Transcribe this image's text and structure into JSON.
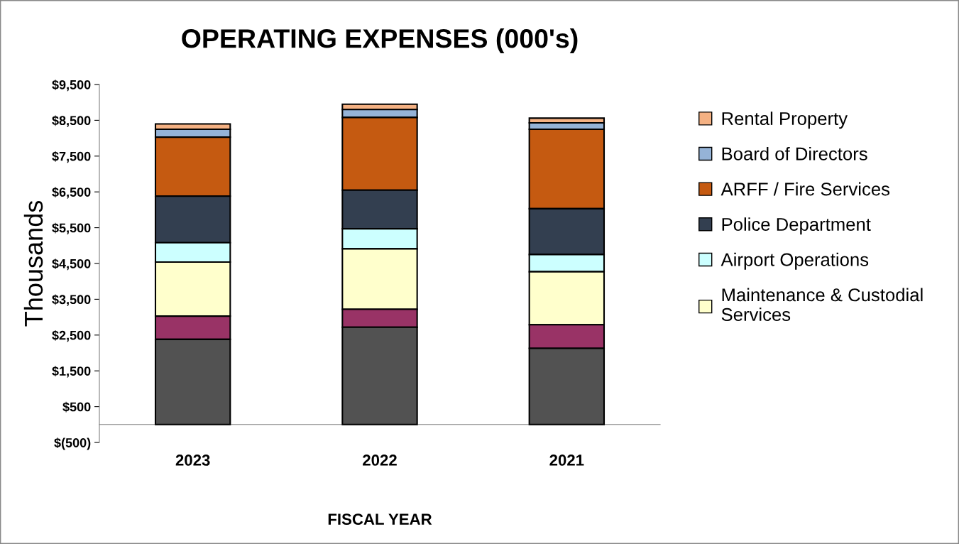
{
  "chart_data": {
    "type": "bar",
    "stacked": true,
    "title": "OPERATING EXPENSES (000's)",
    "xlabel": "FISCAL YEAR",
    "ylabel": "Thousands",
    "categories": [
      "2023",
      "2022",
      "2021"
    ],
    "series": [
      {
        "color": "#525252",
        "values": [
          2380,
          2720,
          2130
        ]
      },
      {
        "color": "#993366",
        "values": [
          650,
          500,
          660
        ]
      },
      {
        "name": "Maintenance & Custodial\nServices",
        "color": "#ffffcc",
        "values": [
          1510,
          1690,
          1480
        ]
      },
      {
        "name": "Airport Operations",
        "color": "#ccffff",
        "values": [
          540,
          560,
          480
        ]
      },
      {
        "name": "Police Department",
        "color": "#333f50",
        "values": [
          1300,
          1080,
          1280
        ]
      },
      {
        "name": "ARFF / Fire Services",
        "color": "#c55a11",
        "values": [
          1650,
          2030,
          2220
        ]
      },
      {
        "name": "Board of Directors",
        "color": "#95b3d7",
        "values": [
          220,
          220,
          180
        ]
      },
      {
        "name": "Rental Property",
        "color": "#f4b183",
        "values": [
          150,
          150,
          130
        ]
      }
    ],
    "ylim": [
      -500,
      9500
    ],
    "yticks": [
      {
        "value": -500,
        "label": "$(500)"
      },
      {
        "value": 500,
        "label": "$500"
      },
      {
        "value": 1500,
        "label": "$1,500"
      },
      {
        "value": 2500,
        "label": "$2,500"
      },
      {
        "value": 3500,
        "label": "$3,500"
      },
      {
        "value": 4500,
        "label": "$4,500"
      },
      {
        "value": 5500,
        "label": "$5,500"
      },
      {
        "value": 6500,
        "label": "$6,500"
      },
      {
        "value": 7500,
        "label": "$7,500"
      },
      {
        "value": 8500,
        "label": "$8,500"
      },
      {
        "value": 9500,
        "label": "$9,500"
      }
    ],
    "grid": false,
    "legend": "right"
  }
}
